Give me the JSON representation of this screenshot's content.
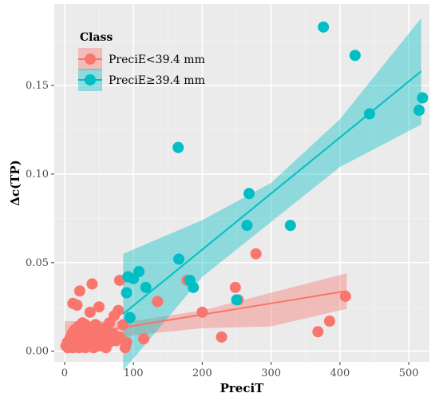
{
  "chart_data": {
    "type": "scatter",
    "title": "",
    "xlabel": "PreciT",
    "ylabel": "Δc(TP)",
    "xlim": [
      -15,
      530
    ],
    "ylim": [
      -0.006,
      0.196
    ],
    "x_ticks": [
      0,
      100,
      200,
      300,
      400,
      500
    ],
    "y_ticks": [
      0.0,
      0.05,
      0.1,
      0.15
    ],
    "x_tick_labels": [
      "0",
      "100",
      "200",
      "300",
      "400",
      "500"
    ],
    "y_tick_labels": [
      "0.00",
      "0.05",
      "0.10",
      "0.15"
    ],
    "grid": true,
    "background": "#ebebeb",
    "legend": {
      "title": "Class",
      "placement": "top-left",
      "entries": [
        "PreciE<39.4 mm",
        "PreciE≥39.4 mm"
      ]
    },
    "series": [
      {
        "name": "PreciE<39.4 mm",
        "color": "#F8766D",
        "points": [
          [
            2,
            0.003
          ],
          [
            4,
            0.005
          ],
          [
            5,
            0.002
          ],
          [
            6,
            0.004
          ],
          [
            7,
            0.006
          ],
          [
            8,
            0.003
          ],
          [
            9,
            0.008
          ],
          [
            10,
            0.004
          ],
          [
            11,
            0.01
          ],
          [
            12,
            0.002
          ],
          [
            13,
            0.006
          ],
          [
            14,
            0.012
          ],
          [
            15,
            0.004
          ],
          [
            16,
            0.007
          ],
          [
            17,
            0.003
          ],
          [
            18,
            0.009
          ],
          [
            19,
            0.005
          ],
          [
            20,
            0.014
          ],
          [
            21,
            0.002
          ],
          [
            22,
            0.006
          ],
          [
            23,
            0.011
          ],
          [
            24,
            0.004
          ],
          [
            25,
            0.008
          ],
          [
            26,
            0.013
          ],
          [
            27,
            0.003
          ],
          [
            28,
            0.005
          ],
          [
            29,
            0.009
          ],
          [
            30,
            0.002
          ],
          [
            31,
            0.007
          ],
          [
            32,
            0.012
          ],
          [
            33,
            0.004
          ],
          [
            34,
            0.01
          ],
          [
            35,
            0.006
          ],
          [
            36,
            0.003
          ],
          [
            38,
            0.008
          ],
          [
            40,
            0.005
          ],
          [
            42,
            0.002
          ],
          [
            44,
            0.007
          ],
          [
            46,
            0.004
          ],
          [
            48,
            0.011
          ],
          [
            50,
            0.003
          ],
          [
            52,
            0.006
          ],
          [
            55,
            0.009
          ],
          [
            58,
            0.004
          ],
          [
            60,
            0.002
          ],
          [
            62,
            0.007
          ],
          [
            65,
            0.005
          ],
          [
            70,
            0.01
          ],
          [
            75,
            0.006
          ],
          [
            80,
            0.008
          ],
          [
            12,
            0.027
          ],
          [
            18,
            0.026
          ],
          [
            22,
            0.034
          ],
          [
            26,
            0.016
          ],
          [
            30,
            0.015
          ],
          [
            37,
            0.022
          ],
          [
            40,
            0.038
          ],
          [
            45,
            0.015
          ],
          [
            50,
            0.025
          ],
          [
            58,
            0.013
          ],
          [
            65,
            0.016
          ],
          [
            72,
            0.02
          ],
          [
            78,
            0.023
          ],
          [
            80,
            0.04
          ],
          [
            85,
            0.015
          ],
          [
            88,
            0.002
          ],
          [
            90,
            0.005
          ],
          [
            95,
            0.019
          ],
          [
            115,
            0.007
          ],
          [
            135,
            0.028
          ],
          [
            178,
            0.04
          ],
          [
            200,
            0.022
          ],
          [
            228,
            0.008
          ],
          [
            248,
            0.036
          ],
          [
            252,
            0.029
          ],
          [
            278,
            0.055
          ],
          [
            368,
            0.011
          ],
          [
            385,
            0.017
          ],
          [
            408,
            0.031
          ]
        ],
        "fit": {
          "x": [
            0,
            410
          ],
          "y": [
            0.008,
            0.034
          ]
        },
        "ci_upper": [
          [
            0,
            0.017
          ],
          [
            100,
            0.017
          ],
          [
            200,
            0.023
          ],
          [
            300,
            0.033
          ],
          [
            410,
            0.044
          ]
        ],
        "ci_lower": [
          [
            0,
            -0.001
          ],
          [
            100,
            0.009
          ],
          [
            200,
            0.013
          ],
          [
            300,
            0.014
          ],
          [
            410,
            0.024
          ]
        ]
      },
      {
        "name": "PreciE≥39.4 mm",
        "color": "#00BFC4",
        "points": [
          [
            90,
            0.033
          ],
          [
            92,
            0.042
          ],
          [
            95,
            0.019
          ],
          [
            100,
            0.041
          ],
          [
            108,
            0.045
          ],
          [
            118,
            0.036
          ],
          [
            165,
            0.115
          ],
          [
            166,
            0.052
          ],
          [
            182,
            0.04
          ],
          [
            187,
            0.036
          ],
          [
            250,
            0.029
          ],
          [
            265,
            0.071
          ],
          [
            268,
            0.089
          ],
          [
            328,
            0.071
          ],
          [
            376,
            0.183
          ],
          [
            422,
            0.167
          ],
          [
            443,
            0.134
          ],
          [
            515,
            0.136
          ],
          [
            520,
            0.143
          ]
        ],
        "fit": {
          "x": [
            85,
            518
          ],
          "y": [
            0.021,
            0.158
          ]
        },
        "ci_upper": [
          [
            85,
            0.055
          ],
          [
            200,
            0.074
          ],
          [
            300,
            0.095
          ],
          [
            400,
            0.131
          ],
          [
            518,
            0.188
          ]
        ],
        "ci_lower": [
          [
            85,
            -0.011
          ],
          [
            200,
            0.042
          ],
          [
            300,
            0.073
          ],
          [
            400,
            0.104
          ],
          [
            518,
            0.128
          ]
        ]
      }
    ]
  }
}
